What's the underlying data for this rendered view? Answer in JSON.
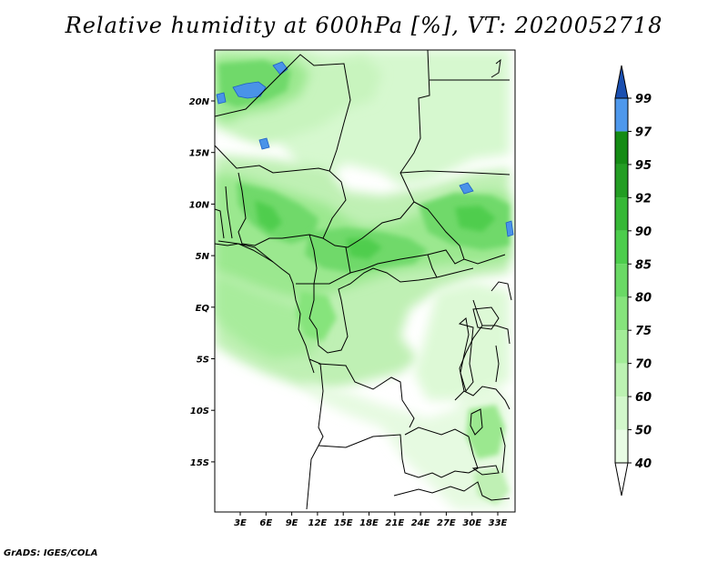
{
  "title": "Relative humidity at 600hPa [%], VT: 2020052718",
  "credit": "GrADS: IGES/COLA",
  "lon_ticks": [
    "3E",
    "6E",
    "9E",
    "12E",
    "15E",
    "18E",
    "21E",
    "24E",
    "27E",
    "30E",
    "33E"
  ],
  "lat_ticks": [
    "20N",
    "15N",
    "10N",
    "5N",
    "EQ",
    "5S",
    "10S",
    "15S"
  ],
  "colorbar": {
    "levels": [
      "40",
      "50",
      "60",
      "70",
      "75",
      "80",
      "85",
      "90",
      "92",
      "95",
      "97",
      "99"
    ],
    "colors": [
      "#ffffff",
      "#e8fbe4",
      "#d2f7cb",
      "#bcf2b2",
      "#a2ec97",
      "#86e47c",
      "#6ad965",
      "#4ccd4c",
      "#36b836",
      "#239d23",
      "#148b14",
      "#4e98ec",
      "#2268d0",
      "#1a4fb0"
    ]
  }
}
